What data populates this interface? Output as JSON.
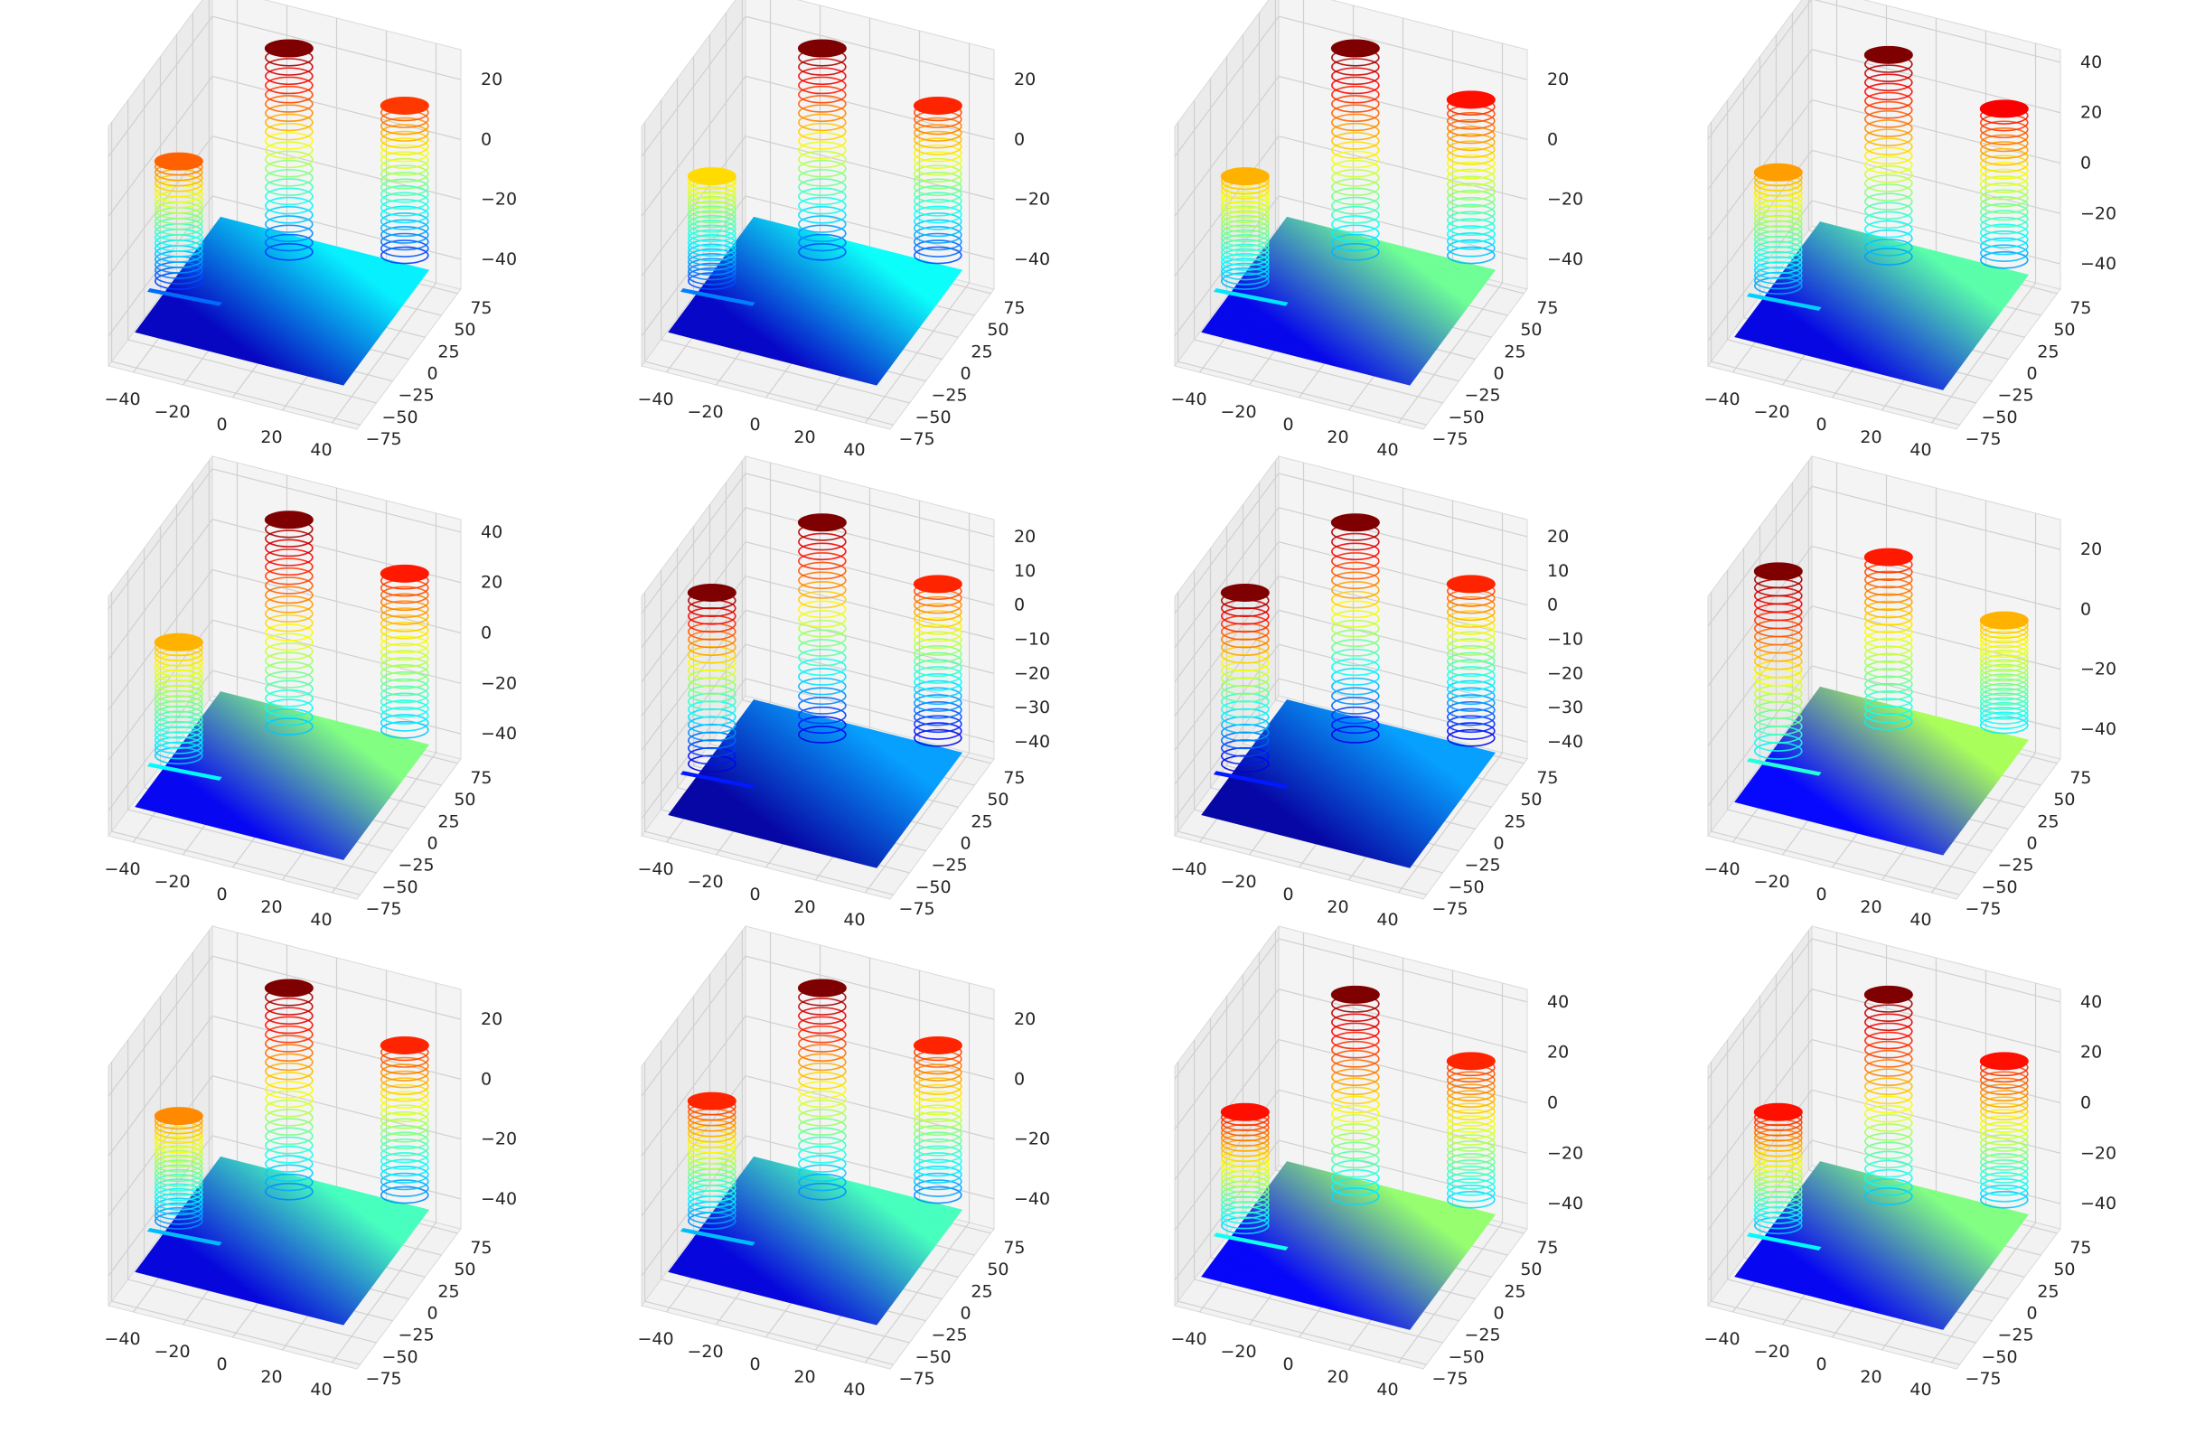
{
  "figure": {
    "rows": 3,
    "cols": 4,
    "colormap": [
      "#00007f",
      "#0000ff",
      "#007fff",
      "#00ffff",
      "#7fff7f",
      "#ffff00",
      "#ff7f00",
      "#ff0000",
      "#7f0000"
    ]
  },
  "chart_data": [
    {
      "type": "scatter",
      "subtype": "3d-point-cloud",
      "panel": "r1c1",
      "title": "",
      "x_ticks": [
        "−40",
        "−20",
        "0",
        "20",
        "40"
      ],
      "y_ticks": [
        "−75",
        "−50",
        "−25",
        "0",
        "25",
        "50",
        "75"
      ],
      "z_ticks": [
        "−40",
        "−20",
        "0",
        "20"
      ],
      "xlim": [
        -50,
        50
      ],
      "ylim": [
        -80,
        80
      ],
      "zlim": [
        -50,
        30
      ],
      "plane_z": -40,
      "plane_color": 0.18,
      "objects": [
        {
          "name": "tall-cylinder",
          "x": -10,
          "y": 45,
          "top_z": 28,
          "top_color": 1.0
        },
        {
          "name": "right-cylinder",
          "x": 30,
          "y": 70,
          "top_z": 10,
          "top_color": 0.82
        },
        {
          "name": "left-cylinder",
          "x": -40,
          "y": -10,
          "top_z": 0,
          "top_color": 0.78
        }
      ]
    },
    {
      "type": "scatter",
      "subtype": "3d-point-cloud",
      "panel": "r1c2",
      "title": "",
      "x_ticks": [
        "−40",
        "−20",
        "0",
        "20",
        "40"
      ],
      "y_ticks": [
        "−75",
        "−50",
        "−25",
        "0",
        "25",
        "50",
        "75"
      ],
      "z_ticks": [
        "−40",
        "−20",
        "0",
        "20"
      ],
      "xlim": [
        -50,
        50
      ],
      "ylim": [
        -80,
        80
      ],
      "zlim": [
        -50,
        30
      ],
      "plane_z": -40,
      "plane_color": 0.2,
      "objects": [
        {
          "name": "tall-cylinder",
          "x": -10,
          "y": 45,
          "top_z": 28,
          "top_color": 1.0
        },
        {
          "name": "right-cylinder",
          "x": 30,
          "y": 70,
          "top_z": 10,
          "top_color": 0.84
        },
        {
          "name": "left-cylinder",
          "x": -40,
          "y": -10,
          "top_z": -5,
          "top_color": 0.66
        }
      ]
    },
    {
      "type": "scatter",
      "subtype": "3d-point-cloud",
      "panel": "r1c3",
      "title": "",
      "x_ticks": [
        "−40",
        "−20",
        "0",
        "20",
        "40"
      ],
      "y_ticks": [
        "−75",
        "−50",
        "−25",
        "0",
        "25",
        "50",
        "75"
      ],
      "z_ticks": [
        "−40",
        "−20",
        "0",
        "20"
      ],
      "xlim": [
        -50,
        50
      ],
      "ylim": [
        -80,
        80
      ],
      "zlim": [
        -50,
        30
      ],
      "plane_z": -40,
      "plane_color": 0.3,
      "objects": [
        {
          "name": "tall-cylinder",
          "x": -10,
          "y": 45,
          "top_z": 28,
          "top_color": 1.0
        },
        {
          "name": "right-cylinder",
          "x": 30,
          "y": 70,
          "top_z": 12,
          "top_color": 0.86
        },
        {
          "name": "left-cylinder",
          "x": -40,
          "y": -10,
          "top_z": -5,
          "top_color": 0.7
        }
      ]
    },
    {
      "type": "scatter",
      "subtype": "3d-point-cloud",
      "panel": "r1c4",
      "title": "",
      "x_ticks": [
        "−40",
        "−20",
        "0",
        "20",
        "40"
      ],
      "y_ticks": [
        "−75",
        "−50",
        "−25",
        "0",
        "25",
        "50",
        "75"
      ],
      "z_ticks": [
        "−40",
        "−20",
        "0",
        "20",
        "40"
      ],
      "xlim": [
        -50,
        50
      ],
      "ylim": [
        -80,
        80
      ],
      "zlim": [
        -50,
        45
      ],
      "plane_z": -40,
      "plane_color": 0.28,
      "objects": [
        {
          "name": "tall-cylinder",
          "x": -10,
          "y": 45,
          "top_z": 40,
          "top_color": 1.0
        },
        {
          "name": "right-cylinder",
          "x": 30,
          "y": 70,
          "top_z": 20,
          "top_color": 0.88
        },
        {
          "name": "left-cylinder",
          "x": -40,
          "y": -10,
          "top_z": 5,
          "top_color": 0.72
        }
      ]
    },
    {
      "type": "scatter",
      "subtype": "3d-point-cloud",
      "panel": "r2c1",
      "title": "",
      "x_ticks": [
        "−40",
        "−20",
        "0",
        "20",
        "40"
      ],
      "y_ticks": [
        "−75",
        "−50",
        "−25",
        "0",
        "25",
        "50",
        "75"
      ],
      "z_ticks": [
        "−40",
        "−20",
        "0",
        "20",
        "40"
      ],
      "xlim": [
        -50,
        50
      ],
      "ylim": [
        -80,
        80
      ],
      "zlim": [
        -50,
        45
      ],
      "plane_z": -40,
      "plane_color": 0.32,
      "objects": [
        {
          "name": "tall-cylinder",
          "x": -10,
          "y": 45,
          "top_z": 42,
          "top_color": 1.0
        },
        {
          "name": "right-cylinder",
          "x": 30,
          "y": 70,
          "top_z": 22,
          "top_color": 0.85
        },
        {
          "name": "left-cylinder",
          "x": -40,
          "y": -10,
          "top_z": 5,
          "top_color": 0.7
        }
      ]
    },
    {
      "type": "scatter",
      "subtype": "3d-point-cloud",
      "panel": "r2c2",
      "title": "",
      "x_ticks": [
        "−40",
        "−20",
        "0",
        "20",
        "40"
      ],
      "y_ticks": [
        "−75",
        "−50",
        "−25",
        "0",
        "25",
        "50",
        "75"
      ],
      "z_ticks": [
        "−40",
        "−30",
        "−20",
        "−10",
        "0",
        "10",
        "20"
      ],
      "xlim": [
        -50,
        50
      ],
      "ylim": [
        -80,
        80
      ],
      "zlim": [
        -45,
        25
      ],
      "plane_z": -40,
      "plane_color": 0.1,
      "objects": [
        {
          "name": "tall-cylinder",
          "x": -10,
          "y": 45,
          "top_z": 22,
          "top_color": 1.0
        },
        {
          "name": "right-cylinder",
          "x": 30,
          "y": 70,
          "top_z": 5,
          "top_color": 0.84
        },
        {
          "name": "left-cylinder",
          "x": -40,
          "y": -10,
          "top_z": 10,
          "top_color": 1.0
        }
      ]
    },
    {
      "type": "scatter",
      "subtype": "3d-point-cloud",
      "panel": "r2c3",
      "title": "",
      "x_ticks": [
        "−40",
        "−20",
        "0",
        "20",
        "40"
      ],
      "y_ticks": [
        "−75",
        "−50",
        "−25",
        "0",
        "25",
        "50",
        "75"
      ],
      "z_ticks": [
        "−40",
        "−30",
        "−20",
        "−10",
        "0",
        "10",
        "20"
      ],
      "xlim": [
        -50,
        50
      ],
      "ylim": [
        -80,
        80
      ],
      "zlim": [
        -45,
        25
      ],
      "plane_z": -40,
      "plane_color": 0.1,
      "objects": [
        {
          "name": "tall-cylinder",
          "x": -10,
          "y": 45,
          "top_z": 22,
          "top_color": 1.0
        },
        {
          "name": "right-cylinder",
          "x": 30,
          "y": 70,
          "top_z": 5,
          "top_color": 0.84
        },
        {
          "name": "left-cylinder",
          "x": -40,
          "y": -10,
          "top_z": 10,
          "top_color": 1.0
        }
      ]
    },
    {
      "type": "scatter",
      "subtype": "3d-point-cloud",
      "panel": "r2c4",
      "title": "",
      "x_ticks": [
        "−40",
        "−20",
        "0",
        "20",
        "40"
      ],
      "y_ticks": [
        "−75",
        "−50",
        "−25",
        "0",
        "25",
        "50",
        "75"
      ],
      "z_ticks": [
        "−40",
        "−20",
        "0",
        "20"
      ],
      "xlim": [
        -50,
        50
      ],
      "ylim": [
        -80,
        80
      ],
      "zlim": [
        -50,
        30
      ],
      "plane_z": -40,
      "plane_color": 0.36,
      "objects": [
        {
          "name": "tall-cylinder",
          "x": -10,
          "y": 45,
          "top_z": 15,
          "top_color": 0.85
        },
        {
          "name": "right-cylinder",
          "x": 30,
          "y": 70,
          "top_z": -5,
          "top_color": 0.7
        },
        {
          "name": "left-cylinder",
          "x": -40,
          "y": -10,
          "top_z": 20,
          "top_color": 1.0
        }
      ]
    },
    {
      "type": "scatter",
      "subtype": "3d-point-cloud",
      "panel": "r3c1",
      "title": "",
      "x_ticks": [
        "−40",
        "−20",
        "0",
        "20",
        "40"
      ],
      "y_ticks": [
        "−75",
        "−50",
        "−25",
        "0",
        "25",
        "50",
        "75"
      ],
      "z_ticks": [
        "−40",
        "−20",
        "0",
        "20"
      ],
      "xlim": [
        -50,
        50
      ],
      "ylim": [
        -80,
        80
      ],
      "zlim": [
        -50,
        30
      ],
      "plane_z": -40,
      "plane_color": 0.26,
      "objects": [
        {
          "name": "tall-cylinder",
          "x": -10,
          "y": 45,
          "top_z": 28,
          "top_color": 1.0
        },
        {
          "name": "right-cylinder",
          "x": 30,
          "y": 70,
          "top_z": 10,
          "top_color": 0.84
        },
        {
          "name": "left-cylinder",
          "x": -40,
          "y": -10,
          "top_z": -5,
          "top_color": 0.74
        }
      ]
    },
    {
      "type": "scatter",
      "subtype": "3d-point-cloud",
      "panel": "r3c2",
      "title": "",
      "x_ticks": [
        "−40",
        "−20",
        "0",
        "20",
        "40"
      ],
      "y_ticks": [
        "−75",
        "−50",
        "−25",
        "0",
        "25",
        "50",
        "75"
      ],
      "z_ticks": [
        "−40",
        "−20",
        "0",
        "20"
      ],
      "xlim": [
        -50,
        50
      ],
      "ylim": [
        -80,
        80
      ],
      "zlim": [
        -50,
        30
      ],
      "plane_z": -40,
      "plane_color": 0.26,
      "objects": [
        {
          "name": "tall-cylinder",
          "x": -10,
          "y": 45,
          "top_z": 28,
          "top_color": 1.0
        },
        {
          "name": "right-cylinder",
          "x": 30,
          "y": 70,
          "top_z": 10,
          "top_color": 0.84
        },
        {
          "name": "left-cylinder",
          "x": -40,
          "y": -10,
          "top_z": 0,
          "top_color": 0.84
        }
      ]
    },
    {
      "type": "scatter",
      "subtype": "3d-point-cloud",
      "panel": "r3c3",
      "title": "",
      "x_ticks": [
        "−40",
        "−20",
        "0",
        "20",
        "40"
      ],
      "y_ticks": [
        "−75",
        "−50",
        "−25",
        "0",
        "25",
        "50",
        "75"
      ],
      "z_ticks": [
        "−40",
        "−20",
        "0",
        "20",
        "40"
      ],
      "xlim": [
        -50,
        50
      ],
      "ylim": [
        -80,
        80
      ],
      "zlim": [
        -50,
        45
      ],
      "plane_z": -40,
      "plane_color": 0.34,
      "objects": [
        {
          "name": "tall-cylinder",
          "x": -10,
          "y": 45,
          "top_z": 40,
          "top_color": 1.0
        },
        {
          "name": "right-cylinder",
          "x": 30,
          "y": 70,
          "top_z": 15,
          "top_color": 0.84
        },
        {
          "name": "left-cylinder",
          "x": -40,
          "y": -10,
          "top_z": 5,
          "top_color": 0.86
        }
      ]
    },
    {
      "type": "scatter",
      "subtype": "3d-point-cloud",
      "panel": "r3c4",
      "title": "",
      "x_ticks": [
        "−40",
        "−20",
        "0",
        "20",
        "40"
      ],
      "y_ticks": [
        "−75",
        "−50",
        "−25",
        "0",
        "25",
        "50",
        "75"
      ],
      "z_ticks": [
        "−40",
        "−20",
        "0",
        "20",
        "40"
      ],
      "xlim": [
        -50,
        50
      ],
      "ylim": [
        -80,
        80
      ],
      "zlim": [
        -50,
        45
      ],
      "plane_z": -40,
      "plane_color": 0.32,
      "objects": [
        {
          "name": "tall-cylinder",
          "x": -10,
          "y": 45,
          "top_z": 40,
          "top_color": 1.0
        },
        {
          "name": "right-cylinder",
          "x": 30,
          "y": 70,
          "top_z": 15,
          "top_color": 0.86
        },
        {
          "name": "left-cylinder",
          "x": -40,
          "y": -10,
          "top_z": 5,
          "top_color": 0.86
        }
      ]
    }
  ]
}
